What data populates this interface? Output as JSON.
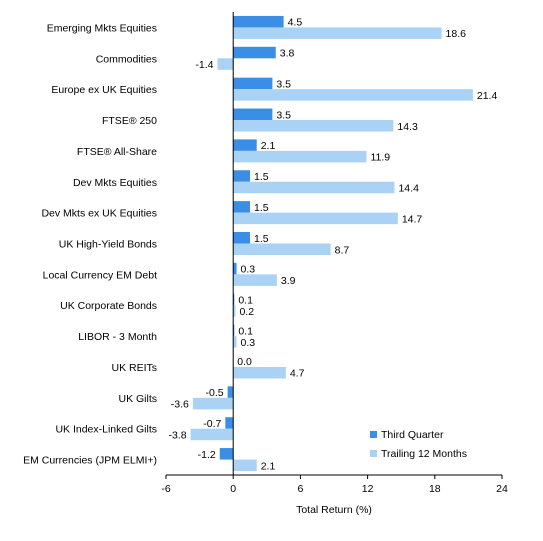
{
  "chart_data": {
    "type": "bar",
    "orientation": "horizontal",
    "xlabel": "Total Return (%)",
    "xlim": [
      -6,
      24
    ],
    "xticks": [
      -6,
      0,
      6,
      12,
      18,
      24
    ],
    "grid": false,
    "legend_position": "bottom-right",
    "categories": [
      "Emerging Mkts Equities",
      "Commodities",
      "Europe ex UK Equities",
      "FTSE® 250",
      "FTSE® All-Share",
      "Dev Mkts Equities",
      "Dev Mkts ex UK Equities",
      "UK High-Yield Bonds",
      "Local Currency EM Debt",
      "UK Corporate Bonds",
      "LIBOR - 3 Month",
      "UK REITs",
      "UK Gilts",
      "UK Index-Linked Gilts",
      "EM Currencies (JPM ELMI+)"
    ],
    "series": [
      {
        "name": "Third Quarter",
        "color": "#3a8ee6",
        "values": [
          4.5,
          3.8,
          3.5,
          3.5,
          2.1,
          1.5,
          1.5,
          1.5,
          0.3,
          0.1,
          0.1,
          0.0,
          -0.5,
          -0.7,
          -1.2
        ],
        "labels": [
          "4.5",
          "3.8",
          "3.5",
          "3.5",
          "2.1",
          "1.5",
          "1.5",
          "1.5",
          "0.3",
          "0.1",
          "0.1",
          "0.0",
          "-0.5",
          "-0.7",
          "-1.2"
        ]
      },
      {
        "name": "Trailing 12 Months",
        "color": "#a9d2f5",
        "values": [
          18.6,
          -1.4,
          21.4,
          14.3,
          11.9,
          14.4,
          14.7,
          8.7,
          3.9,
          0.2,
          0.3,
          4.7,
          -3.6,
          -3.8,
          2.1
        ],
        "labels": [
          "18.6",
          "-1.4",
          "21.4",
          "14.3",
          "11.9",
          "14.4",
          "14.7",
          "8.7",
          "3.9",
          "0.2",
          "0.3",
          "4.7",
          "-3.6",
          "-3.8",
          "2.1"
        ]
      }
    ]
  }
}
